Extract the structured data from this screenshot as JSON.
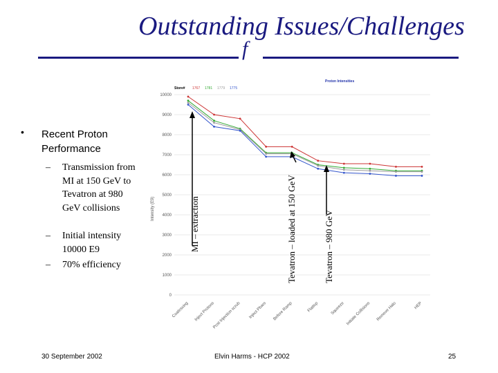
{
  "slide": {
    "title": "Outstanding Issues/Challenges",
    "subtitle": "f",
    "bullet_marker": "•",
    "bullet_heading": "Recent Proton Performance",
    "sub_bullets": [
      {
        "dash": "–",
        "text": "Transmission from MI at 150 GeV to Tevatron at 980 GeV collisions"
      },
      {
        "dash": "–",
        "text": "Initial intensity 10000 E9"
      },
      {
        "dash": "–",
        "text": "70% efficiency"
      }
    ],
    "footer_date": "30 September 2002",
    "footer_center": "Elvin Harms - HCP 2002",
    "page_number": "25"
  },
  "chart_data": {
    "type": "line",
    "title": "Proton Intensities",
    "ylabel": "Intensity (E9)",
    "ylim": [
      0,
      10000
    ],
    "yticks": [
      0,
      1000,
      2000,
      3000,
      4000,
      5000,
      6000,
      7000,
      8000,
      9000,
      10000
    ],
    "legend_label": "Store#",
    "categories": [
      "Coalescing",
      "Inject Protons",
      "Post Injection scrub",
      "Inject Pbars",
      "Before Ramp",
      "Flattop",
      "Squeeze",
      "Initiate Collisions",
      "Remove Halo",
      "HEP"
    ],
    "series": [
      {
        "name": "1767",
        "color": "#cc3333",
        "values": [
          9900,
          9000,
          8800,
          7400,
          7400,
          6700,
          6550,
          6550,
          6400,
          6400
        ]
      },
      {
        "name": "1781",
        "color": "#33aa33",
        "values": [
          9700,
          8700,
          8300,
          7100,
          7100,
          6500,
          6350,
          6300,
          6200,
          6200
        ]
      },
      {
        "name": "1779",
        "color": "#999999",
        "values": [
          9600,
          8600,
          8250,
          7050,
          7050,
          6450,
          6250,
          6200,
          6150,
          6150
        ]
      },
      {
        "name": "1775",
        "color": "#3355cc",
        "values": [
          9500,
          8400,
          8200,
          6900,
          6900,
          6300,
          6100,
          6050,
          5950,
          5950
        ]
      }
    ],
    "annotations": [
      "MI – extraction",
      "Tevatron – loaded at 150 GeV",
      "Tevatron – 980 GeV"
    ]
  }
}
